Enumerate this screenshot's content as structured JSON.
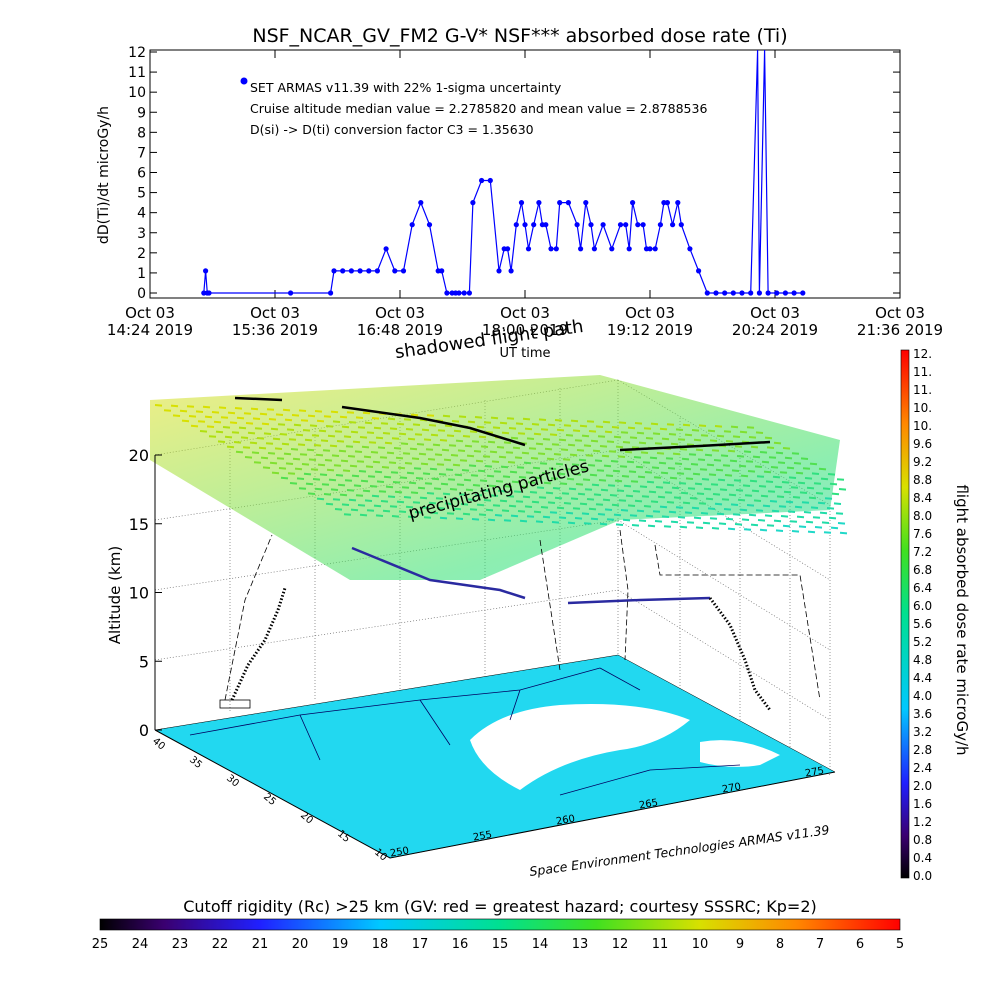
{
  "chart_data": [
    {
      "type": "line",
      "title": "NSF_NCAR_GV_FM2 G-V* NSF*** absorbed dose rate (Ti)",
      "ylabel": "dD(Ti)/dt microGy/h",
      "xlabel": "UT time",
      "ylim": [
        0,
        12
      ],
      "y_ticks": [
        "0",
        "1",
        "2",
        "3",
        "4",
        "5",
        "6",
        "7",
        "8",
        "9",
        "10",
        "11",
        "12"
      ],
      "x_ticks": [
        {
          "date": "Oct 03",
          "time": "14:24 2019"
        },
        {
          "date": "Oct 03",
          "time": "15:36 2019"
        },
        {
          "date": "Oct 03",
          "time": "16:48 2019"
        },
        {
          "date": "Oct 03",
          "time": "18:00 2019"
        },
        {
          "date": "Oct 03",
          "time": "19:12 2019"
        },
        {
          "date": "Oct 03",
          "time": "20:24 2019"
        },
        {
          "date": "Oct 03",
          "time": "21:36 2019"
        }
      ],
      "annotations": [
        "SET ARMAS v11.39 with 22% 1-sigma uncertainty",
        "Cruise altitude median value = 2.2785820 and mean value = 2.8788536",
        "D(si) -> D(ti) conversion factor C3 = 1.35630"
      ],
      "series": [
        {
          "color": "#0000ff",
          "x": [
            "14:55",
            "14:56",
            "14:57",
            "14:58",
            "15:45",
            "16:08",
            "16:10",
            "16:15",
            "16:20",
            "16:25",
            "16:30",
            "16:35",
            "16:40",
            "16:45",
            "16:50",
            "16:55",
            "17:00",
            "17:05",
            "17:10",
            "17:12",
            "17:15",
            "17:18",
            "17:20",
            "17:22",
            "17:25",
            "17:28",
            "17:30",
            "17:35",
            "17:40",
            "17:45",
            "17:48",
            "17:50",
            "17:52",
            "17:55",
            "17:58",
            "18:00",
            "18:02",
            "18:05",
            "18:08",
            "18:10",
            "18:12",
            "18:15",
            "18:18",
            "18:20",
            "18:25",
            "18:30",
            "18:32",
            "18:35",
            "18:38",
            "18:40",
            "18:45",
            "18:50",
            "18:55",
            "18:58",
            "19:00",
            "19:02",
            "19:05",
            "19:08",
            "19:10",
            "19:12",
            "19:15",
            "19:18",
            "19:20",
            "19:22",
            "19:25",
            "19:28",
            "19:30",
            "19:35",
            "19:40",
            "19:45",
            "19:50",
            "19:55",
            "20:00",
            "20:05",
            "20:10",
            "20:14",
            "20:15",
            "20:18",
            "20:20",
            "20:25",
            "20:30",
            "20:35",
            "20:40"
          ],
          "y": [
            0,
            1.1,
            0,
            0,
            0,
            0,
            1.1,
            1.1,
            1.1,
            1.1,
            1.1,
            1.1,
            2.2,
            1.1,
            1.1,
            3.4,
            4.5,
            3.4,
            1.1,
            1.1,
            0,
            0,
            0,
            0,
            0,
            0,
            4.5,
            5.6,
            5.6,
            1.1,
            2.2,
            2.2,
            1.1,
            3.4,
            4.5,
            3.4,
            2.2,
            3.4,
            4.5,
            3.4,
            3.4,
            2.2,
            2.2,
            4.5,
            4.5,
            3.4,
            2.2,
            4.5,
            3.4,
            2.2,
            3.4,
            2.2,
            3.4,
            3.4,
            2.2,
            4.5,
            3.4,
            3.4,
            2.2,
            2.2,
            2.2,
            3.4,
            4.5,
            4.5,
            3.4,
            4.5,
            3.4,
            2.2,
            1.1,
            0,
            0,
            0,
            0,
            0,
            0,
            13,
            0,
            13,
            0,
            0,
            0,
            0,
            0
          ]
        }
      ]
    },
    {
      "type": "scatter",
      "description_axes": "3D flight path with altitude",
      "zlabel": "Altitude (km)",
      "z_ticks": [
        "0",
        "5",
        "10",
        "15",
        "20"
      ],
      "lat_ticks": [
        "40",
        "35",
        "30",
        "25",
        "20",
        "15",
        "10"
      ],
      "lon_ticks": [
        "250",
        "255",
        "260",
        "265",
        "270",
        "275"
      ],
      "annotations": [
        "shadowed flight path",
        "precipitating particles"
      ],
      "credit": "Space Environment Technologies ARMAS v11.39"
    }
  ],
  "colorbar_right": {
    "label": "flight absorbed dose rate microGy/h",
    "ticks": [
      "0.0",
      "0.4",
      "0.8",
      "1.2",
      "1.6",
      "2.0",
      "2.4",
      "2.8",
      "3.2",
      "3.6",
      "4.0",
      "4.4",
      "4.8",
      "5.2",
      "5.6",
      "6.0",
      "6.4",
      "6.8",
      "7.2",
      "7.6",
      "8.0",
      "8.4",
      "8.8",
      "9.2",
      "9.6",
      "10.",
      "10.",
      "11.",
      "11.",
      "12."
    ]
  },
  "colorbar_bottom": {
    "title": "Cutoff rigidity (Rc) >25 km (GV: red = greatest hazard; courtesy SSSRC; Kp=2)",
    "ticks": [
      "25",
      "24",
      "23",
      "22",
      "21",
      "20",
      "19",
      "18",
      "17",
      "16",
      "15",
      "14",
      "13",
      "12",
      "11",
      "10",
      "9",
      "8",
      "7",
      "6",
      "5"
    ]
  }
}
